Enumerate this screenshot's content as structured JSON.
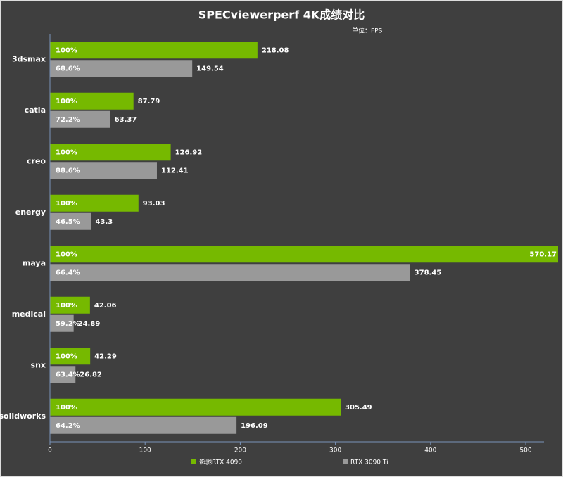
{
  "chart_data": {
    "type": "hbar",
    "title": "SPECviewerperf 4K成绩对比",
    "unit": "单位：FPS",
    "categories": [
      "3dsmax",
      "catia",
      "creo",
      "energy",
      "maya",
      "medical",
      "snx",
      "solidworks"
    ],
    "series": [
      {
        "name": "影驰RTX 4090",
        "color": "#76b900",
        "values": [
          218.08,
          87.79,
          126.92,
          93.03,
          570.17,
          42.06,
          42.29,
          305.49
        ],
        "share_labels": [
          "100%",
          "100%",
          "100%",
          "100%",
          "100%",
          "100%",
          "100%",
          "100%"
        ]
      },
      {
        "name": "RTX 3090 Ti",
        "color": "#999999",
        "values": [
          149.54,
          63.37,
          112.41,
          43.3,
          378.45,
          24.89,
          26.82,
          196.09
        ],
        "share_labels": [
          "68.6%",
          "72.2%",
          "88.6%",
          "46.5%",
          "66.4%",
          "59.2%",
          "63.4%",
          "64.2%"
        ]
      }
    ],
    "xlim": [
      0,
      534
    ],
    "xticks": [
      0,
      100,
      200,
      300,
      400,
      500
    ],
    "legend": "bottom"
  }
}
